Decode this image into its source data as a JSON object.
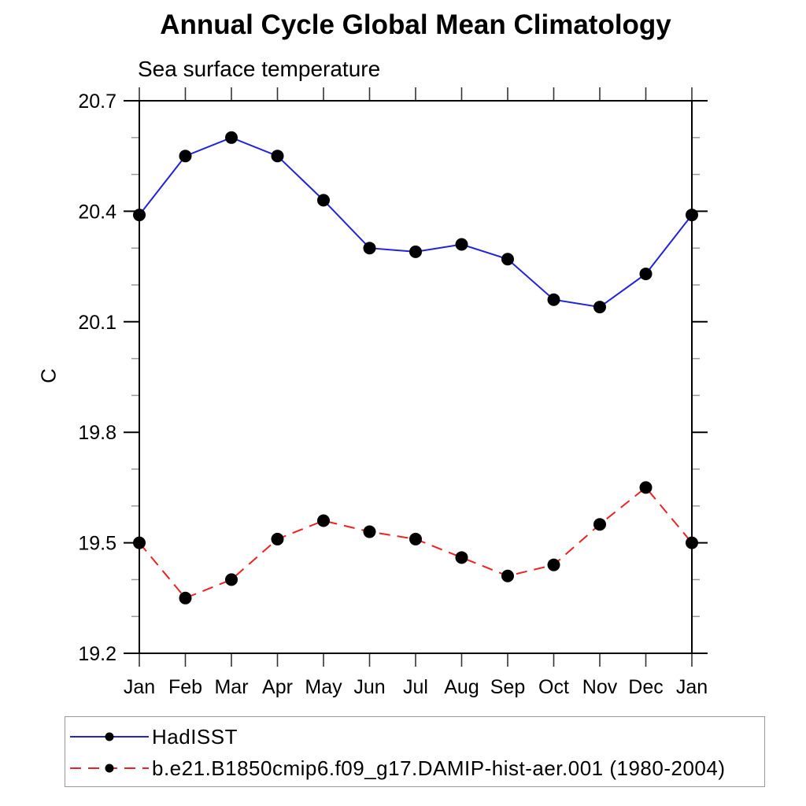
{
  "chart_data": {
    "type": "line",
    "title": "Annual Cycle Global Mean Climatology",
    "subtitle": "Sea surface temperature",
    "ylabel": "C",
    "xlabel": "",
    "categories": [
      "Jan",
      "Feb",
      "Mar",
      "Apr",
      "May",
      "Jun",
      "Jul",
      "Aug",
      "Sep",
      "Oct",
      "Nov",
      "Dec",
      "Jan"
    ],
    "ylim": [
      19.2,
      20.7
    ],
    "ytick_majors": [
      19.2,
      19.5,
      19.8,
      20.1,
      20.4,
      20.7
    ],
    "ytick_minor_step": 0.1,
    "grid": false,
    "legend": {
      "position": "bottom-left",
      "border_color": "#999999"
    },
    "series": [
      {
        "name": "HadISST",
        "color": "#2222dd",
        "line_style": "solid",
        "marker": "filled-circle",
        "marker_color": "#000000",
        "values": [
          20.39,
          20.55,
          20.6,
          20.55,
          20.43,
          20.3,
          20.29,
          20.31,
          20.27,
          20.16,
          20.14,
          20.23,
          20.39
        ]
      },
      {
        "name": "b.e21.B1850cmip6.f09_g17.DAMIP-hist-aer.001 (1980-2004)",
        "color": "#ee2222",
        "line_style": "dashed",
        "marker": "filled-circle",
        "marker_color": "#000000",
        "values": [
          19.5,
          19.35,
          19.4,
          19.51,
          19.56,
          19.53,
          19.51,
          19.46,
          19.41,
          19.44,
          19.55,
          19.65,
          19.5
        ]
      }
    ]
  }
}
